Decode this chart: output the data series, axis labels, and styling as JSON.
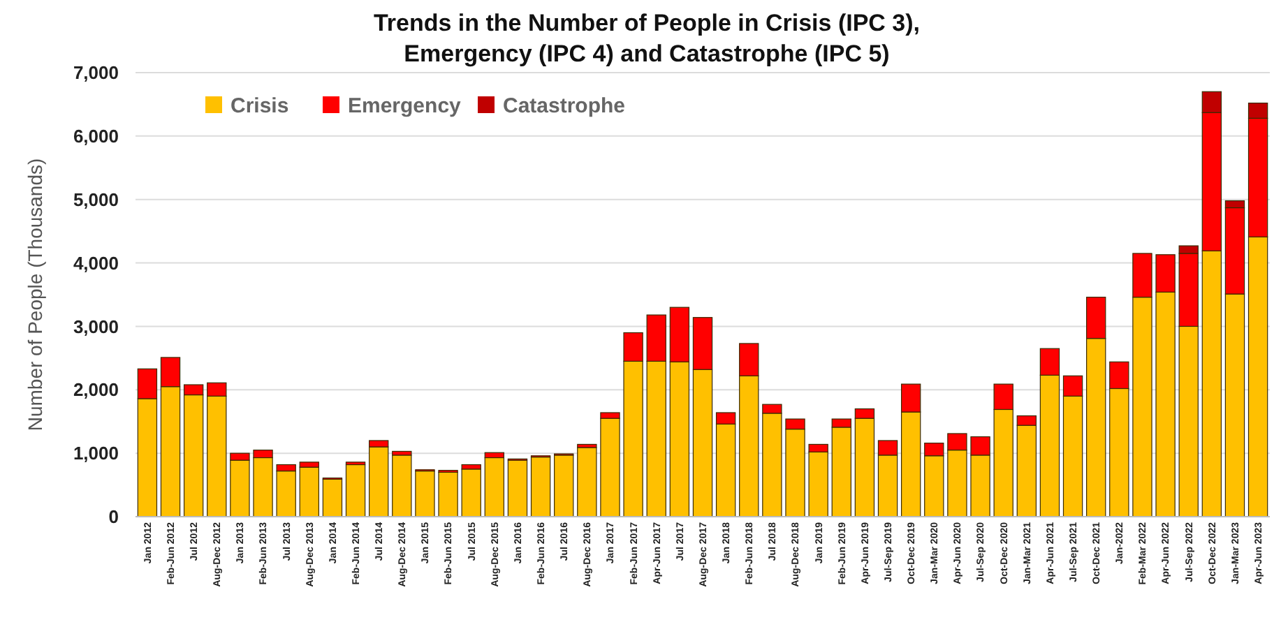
{
  "chart_data": {
    "type": "bar",
    "stacked": true,
    "title": "Trends in the Number of People in Crisis (IPC 3),\nEmergency (IPC 4) and Catastrophe (IPC 5)",
    "ylabel": "Number of People (Thousands)",
    "categories": [
      "Jan 2012",
      "Feb-Jun 2012",
      "Jul 2012",
      "Aug-Dec 2012",
      "Jan 2013",
      "Feb-Jun 2013",
      "Jul 2013",
      "Aug-Dec 2013",
      "Jan 2014",
      "Feb-Jun 2014",
      "Jul 2014",
      "Aug-Dec 2014",
      "Jan 2015",
      "Feb-Jun 2015",
      "Jul 2015",
      "Aug-Dec 2015",
      "Jan 2016",
      "Feb-Jun 2016",
      "Jul 2016",
      "Aug-Dec 2016",
      "Jan 2017",
      "Feb-Jun 2017",
      "Apr-Jun 2017",
      "Jul 2017",
      "Aug-Dec 2017",
      "Jan 2018",
      "Feb-Jun 2018",
      "Jul 2018",
      "Aug-Dec 2018",
      "Jan 2019",
      "Feb-Jun 2019",
      "Apr-Jun 2019",
      "Jul-Sep 2019",
      "Oct-Dec 2019",
      "Jan-Mar 2020",
      "Apr-Jun 2020",
      "Jul-Sep 2020",
      "Oct-Dec 2020",
      "Jan-Mar 2021",
      "Apr-Jun 2021",
      "Jul-Sep 2021",
      "Oct-Dec 2021",
      "Jan-2022",
      "Feb-Mar 2022",
      "Apr-Jun 2022",
      "Jul-Sep 2022",
      "Oct-Dec 2022",
      "Jan-Mar 2023",
      "Apr-Jun 2023"
    ],
    "series": [
      {
        "name": "Crisis",
        "color": "#ffc000",
        "values": [
          1860,
          2050,
          1920,
          1900,
          890,
          930,
          720,
          780,
          590,
          820,
          1100,
          970,
          720,
          700,
          750,
          930,
          890,
          940,
          970,
          1090,
          1550,
          2450,
          2450,
          2440,
          2320,
          1460,
          2220,
          1630,
          1380,
          1020,
          1410,
          1550,
          970,
          1650,
          960,
          1050,
          970,
          1690,
          1440,
          2230,
          1900,
          2810,
          2020,
          3460,
          3540,
          3000,
          4190,
          3510,
          4410
        ]
      },
      {
        "name": "Emergency",
        "color": "#ff0000",
        "values": [
          470,
          460,
          160,
          210,
          110,
          120,
          100,
          80,
          20,
          40,
          100,
          60,
          20,
          30,
          70,
          80,
          20,
          20,
          20,
          50,
          90,
          450,
          730,
          860,
          820,
          180,
          510,
          140,
          160,
          120,
          130,
          150,
          230,
          440,
          200,
          260,
          290,
          400,
          150,
          420,
          320,
          650,
          420,
          690,
          590,
          1150,
          2180,
          1360,
          1870
        ]
      },
      {
        "name": "Catastrophe",
        "color": "#c00000",
        "values": [
          0,
          0,
          0,
          0,
          0,
          0,
          0,
          0,
          0,
          0,
          0,
          0,
          0,
          0,
          0,
          0,
          0,
          0,
          0,
          0,
          0,
          0,
          0,
          0,
          0,
          0,
          0,
          0,
          0,
          0,
          0,
          0,
          0,
          0,
          0,
          0,
          0,
          0,
          0,
          0,
          0,
          0,
          0,
          0,
          0,
          120,
          330,
          110,
          240
        ]
      }
    ],
    "ylim": [
      0,
      7000
    ],
    "yticks": [
      0,
      {
        "value": 1000,
        "label": "1,000"
      },
      {
        "value": 2000,
        "label": "2,000"
      },
      {
        "value": 3000,
        "label": "3,000"
      },
      {
        "value": 4000,
        "label": "4,000"
      },
      {
        "value": 5000,
        "label": "5,000"
      },
      {
        "value": 6000,
        "label": "6,000"
      },
      {
        "value": 7000,
        "label": "7,000"
      }
    ],
    "grid": "y",
    "legend": "top left"
  }
}
